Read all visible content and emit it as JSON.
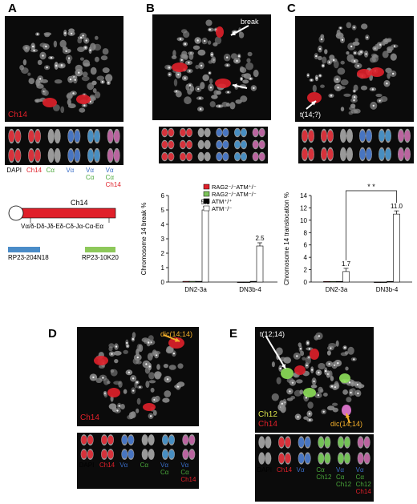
{
  "panels": {
    "A": {
      "label": "A",
      "micro_label": "Ch14",
      "strip_labels": [
        {
          "lines": [
            "DAPI"
          ],
          "colors": [
            "#000"
          ]
        },
        {
          "lines": [
            "Ch14"
          ],
          "colors": [
            "#e0202a"
          ]
        },
        {
          "lines": [
            "Cα"
          ],
          "colors": [
            "#4aa83a"
          ]
        },
        {
          "lines": [
            "Vα"
          ],
          "colors": [
            "#3a6ec8"
          ]
        },
        {
          "lines": [
            "Vα",
            "Cα"
          ],
          "colors": [
            "#3a6ec8",
            "#4aa83a"
          ]
        },
        {
          "lines": [
            "Vα",
            "Cα",
            "Ch14"
          ],
          "colors": [
            "#3a6ec8",
            "#4aa83a",
            "#e0202a"
          ]
        }
      ],
      "diagram": {
        "chromosome_label": "Ch14",
        "locus": "Vα/δ-Dδ-Jδ-Eδ-Cδ-Jα-Cα-Eα",
        "probe1": "RP23-204N18",
        "probe2": "RP23-10K20"
      }
    },
    "B": {
      "label": "B",
      "arrow_label": "break"
    },
    "C": {
      "label": "C",
      "arrow_label": "t(14;?)"
    },
    "D": {
      "label": "D",
      "arrow_label": "dic(14;14)",
      "micro_label": "Ch14",
      "strip_labels": [
        {
          "lines": [
            "DAPI"
          ],
          "colors": [
            "#000"
          ]
        },
        {
          "lines": [
            "Ch14"
          ],
          "colors": [
            "#e0202a"
          ]
        },
        {
          "lines": [
            "Vα"
          ],
          "colors": [
            "#3a6ec8"
          ]
        },
        {
          "lines": [
            "Cα"
          ],
          "colors": [
            "#4aa83a"
          ]
        },
        {
          "lines": [
            "Vα",
            "Cα"
          ],
          "colors": [
            "#3a6ec8",
            "#4aa83a"
          ]
        },
        {
          "lines": [
            "Vα",
            "Cα",
            "Ch14"
          ],
          "colors": [
            "#3a6ec8",
            "#4aa83a",
            "#e0202a"
          ]
        }
      ]
    },
    "E": {
      "label": "E",
      "arrow_label_1": "t(12;14)",
      "arrow_label_2": "dic(14;14)",
      "micro_label_1": "Ch12",
      "micro_label_2": "Ch14",
      "strip_labels": [
        {
          "lines": [
            "DAPI"
          ],
          "colors": [
            "#000"
          ]
        },
        {
          "lines": [
            "Ch14"
          ],
          "colors": [
            "#e0202a"
          ]
        },
        {
          "lines": [
            "Vα"
          ],
          "colors": [
            "#3a6ec8"
          ]
        },
        {
          "lines": [
            "Cα",
            "Ch12"
          ],
          "colors": [
            "#4aa83a",
            "#4aa83a"
          ]
        },
        {
          "lines": [
            "Vα",
            "Cα",
            "Ch12"
          ],
          "colors": [
            "#3a6ec8",
            "#4aa83a",
            "#4aa83a"
          ]
        },
        {
          "lines": [
            "Vα",
            "Cα",
            "Ch12",
            "Ch14"
          ],
          "colors": [
            "#3a6ec8",
            "#4aa83a",
            "#4aa83a",
            "#e0202a"
          ]
        }
      ]
    }
  },
  "chart_data": [
    {
      "type": "bar",
      "ylabel": "Chromosome 14 break %",
      "categories": [
        "DN2-3a",
        "DN3b-4"
      ],
      "ylim": [
        0,
        6
      ],
      "yticks": [
        0,
        1,
        2,
        3,
        4,
        5,
        6
      ],
      "series": [
        {
          "name": "RAG2⁻/⁻ATM⁺/⁻",
          "color": "#e0202a",
          "values": [
            0.05,
            0.0
          ]
        },
        {
          "name": "RAG2⁻/⁻ATM⁻/⁻",
          "color": "#7cc35a",
          "values": [
            0.05,
            0.0
          ]
        },
        {
          "name": "ATM⁺/⁺",
          "color": "#000000",
          "values": [
            0.05,
            0.05
          ]
        },
        {
          "name": "ATM⁻/⁻",
          "color": "#ffffff",
          "values": [
            5.0,
            2.5
          ]
        }
      ],
      "data_labels": [
        {
          "category": "DN2-3a",
          "series": "ATM⁻/⁻",
          "text": "5.0"
        },
        {
          "category": "DN3b-4",
          "series": "ATM⁻/⁻",
          "text": "2.5"
        }
      ],
      "legend": "top-left"
    },
    {
      "type": "bar",
      "ylabel": "Chromosome 14 translocation %",
      "categories": [
        "DN2-3a",
        "DN3b-4"
      ],
      "ylim": [
        0,
        14
      ],
      "yticks": [
        0,
        2,
        4,
        6,
        8,
        10,
        12,
        14
      ],
      "series": [
        {
          "name": "RAG2⁻/⁻ATM⁺/⁻",
          "color": "#e0202a",
          "values": [
            0.1,
            0.0
          ]
        },
        {
          "name": "RAG2⁻/⁻ATM⁻/⁻",
          "color": "#7cc35a",
          "values": [
            0.1,
            0.0
          ]
        },
        {
          "name": "ATM⁺/⁺",
          "color": "#000000",
          "values": [
            0.1,
            0.1
          ]
        },
        {
          "name": "ATM⁻/⁻",
          "color": "#ffffff",
          "values": [
            1.7,
            11.0
          ]
        }
      ],
      "data_labels": [
        {
          "category": "DN2-3a",
          "series": "ATM⁻/⁻",
          "text": "1.7"
        },
        {
          "category": "DN3b-4",
          "series": "ATM⁻/⁻",
          "text": "11.0"
        }
      ],
      "significance": "* *"
    }
  ]
}
